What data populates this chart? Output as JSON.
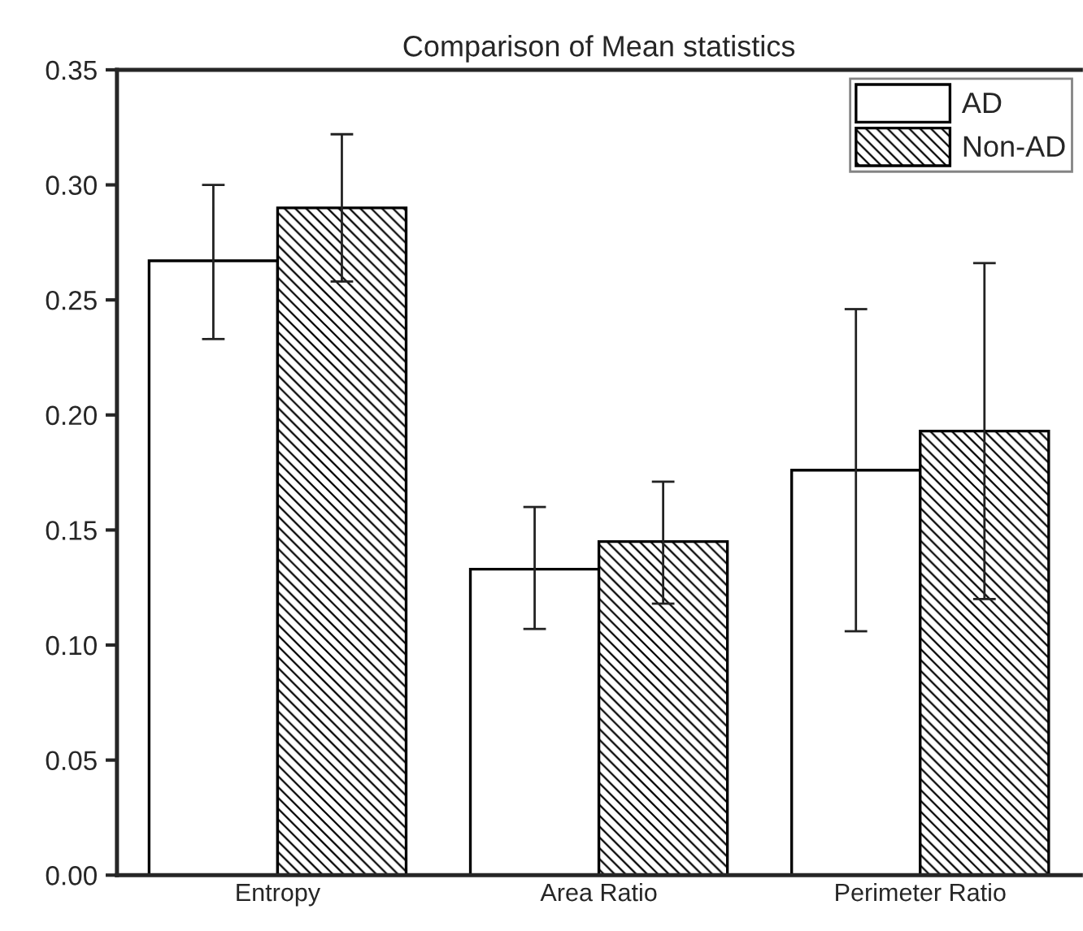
{
  "chart_data": {
    "type": "bar",
    "title": "Comparison of Mean statistics",
    "categories": [
      "Entropy",
      "Area Ratio",
      "Perimeter Ratio"
    ],
    "series": [
      {
        "name": "AD",
        "color": "#ffffff",
        "values": [
          0.267,
          0.133,
          0.176
        ],
        "errors": [
          [
            0.233,
            0.3
          ],
          [
            0.107,
            0.16
          ],
          [
            0.106,
            0.246
          ]
        ]
      },
      {
        "name": "Non-AD",
        "color": "#000000",
        "values": [
          0.29,
          0.145,
          0.193
        ],
        "errors": [
          [
            0.258,
            0.322
          ],
          [
            0.118,
            0.171
          ],
          [
            0.12,
            0.266
          ]
        ]
      }
    ],
    "ylim": [
      0,
      0.35
    ],
    "yticks": [
      {
        "value": 0,
        "label": "0.00"
      },
      {
        "value": 0.05,
        "label": "0.05"
      },
      {
        "value": 0.1,
        "label": "0.10"
      },
      {
        "value": 0.15,
        "label": "0.15"
      },
      {
        "value": 0.2,
        "label": "0.20"
      },
      {
        "value": 0.25,
        "label": "0.25"
      },
      {
        "value": 0.3,
        "label": "0.30"
      },
      {
        "value": 0.35,
        "label": "0.35"
      }
    ],
    "grid": false,
    "legend": "top right"
  }
}
